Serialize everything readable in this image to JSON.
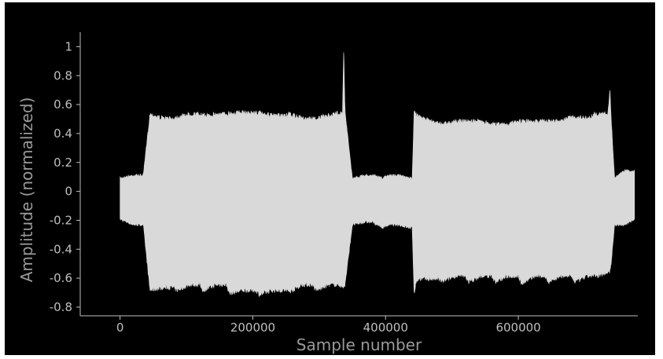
{
  "chart_data": {
    "type": "area",
    "title": "",
    "xlabel": "Sample number",
    "ylabel": "Amplitude (normalized)",
    "xlim": [
      -60000,
      780000
    ],
    "ylim": [
      -0.86,
      1.1
    ],
    "x_ticks": [
      0,
      200000,
      400000,
      600000
    ],
    "x_tick_labels": [
      "0",
      "200000",
      "400000",
      "600000"
    ],
    "y_ticks": [
      1,
      0.8,
      0.6,
      0.4,
      0.2,
      0,
      -0.2,
      -0.4,
      -0.6,
      -0.8
    ],
    "y_tick_labels": [
      "1",
      "0.8",
      "0.6",
      "0.4",
      "0.2",
      "0",
      "-0.2",
      "-0.4",
      "-0.6",
      "-0.8"
    ],
    "grid": false,
    "colors": {
      "background": "#000000",
      "signal": "#d9d9d9",
      "axis": "#bfbfbf",
      "tick_text": "#bfbfbf",
      "title_text": "#9a9a9a"
    },
    "series": [
      {
        "envelope_x": [
          0,
          20000,
          35000,
          45000,
          65000,
          80000,
          85000,
          105000,
          120000,
          125000,
          145000,
          160000,
          165000,
          185000,
          205000,
          210000,
          230000,
          250000,
          255000,
          275000,
          290000,
          295000,
          315000,
          330000,
          335000,
          337000,
          339000,
          350000,
          370000,
          380000,
          395000,
          405000,
          420000,
          435000,
          440000,
          443000,
          446000,
          450000,
          470000,
          480000,
          485000,
          505000,
          520000,
          525000,
          545000,
          560000,
          565000,
          585000,
          600000,
          605000,
          625000,
          640000,
          645000,
          665000,
          680000,
          685000,
          705000,
          715000,
          720000,
          735000,
          738000,
          740000,
          745000,
          760000,
          775000
        ],
        "upper": [
          0.1,
          0.12,
          0.12,
          0.55,
          0.52,
          0.52,
          0.53,
          0.55,
          0.55,
          0.54,
          0.55,
          0.55,
          0.56,
          0.56,
          0.56,
          0.56,
          0.54,
          0.54,
          0.55,
          0.52,
          0.52,
          0.52,
          0.54,
          0.56,
          0.56,
          1.0,
          0.56,
          0.1,
          0.12,
          0.12,
          0.1,
          0.12,
          0.12,
          0.1,
          0.1,
          0.57,
          0.55,
          0.53,
          0.5,
          0.49,
          0.48,
          0.5,
          0.5,
          0.5,
          0.5,
          0.48,
          0.48,
          0.48,
          0.5,
          0.5,
          0.5,
          0.5,
          0.5,
          0.5,
          0.53,
          0.53,
          0.52,
          0.55,
          0.55,
          0.55,
          0.72,
          0.5,
          0.1,
          0.15,
          0.15
        ],
        "lower": [
          -0.2,
          -0.24,
          -0.24,
          -0.7,
          -0.68,
          -0.68,
          -0.7,
          -0.66,
          -0.66,
          -0.7,
          -0.66,
          -0.66,
          -0.72,
          -0.7,
          -0.7,
          -0.73,
          -0.7,
          -0.7,
          -0.71,
          -0.66,
          -0.66,
          -0.7,
          -0.66,
          -0.66,
          -0.68,
          -0.68,
          -0.66,
          -0.24,
          -0.22,
          -0.22,
          -0.26,
          -0.24,
          -0.24,
          -0.26,
          -0.26,
          -0.72,
          -0.64,
          -0.62,
          -0.62,
          -0.62,
          -0.64,
          -0.6,
          -0.6,
          -0.64,
          -0.6,
          -0.6,
          -0.64,
          -0.6,
          -0.6,
          -0.65,
          -0.6,
          -0.6,
          -0.64,
          -0.6,
          -0.6,
          -0.64,
          -0.6,
          -0.6,
          -0.6,
          -0.57,
          -0.57,
          -0.5,
          -0.24,
          -0.24,
          -0.2
        ]
      }
    ]
  }
}
